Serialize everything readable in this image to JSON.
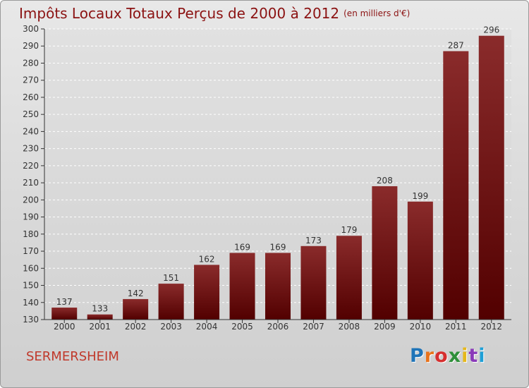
{
  "title": {
    "main": "Impôts Locaux Totaux Perçus de 2000 à 2012",
    "unit": "(en milliers d'€)"
  },
  "town": "SERMERSHEIM",
  "logo": {
    "text": "Proxiti",
    "letter_colors": [
      "#1f74b8",
      "#e8731c",
      "#d62f2f",
      "#2f8f3a",
      "#e6b81c",
      "#8a3ab9",
      "#1f9fd6"
    ]
  },
  "colors": {
    "bar_top": "#8a2b2b",
    "bar_bottom": "#520000",
    "title": "#8b1212",
    "town": "#c0392b"
  },
  "chart_data": {
    "type": "bar",
    "categories": [
      "2000",
      "2001",
      "2002",
      "2003",
      "2004",
      "2005",
      "2006",
      "2007",
      "2008",
      "2009",
      "2010",
      "2011",
      "2012"
    ],
    "values": [
      137,
      133,
      142,
      151,
      162,
      169,
      169,
      173,
      179,
      208,
      199,
      287,
      296
    ],
    "ylim": [
      130,
      300
    ],
    "yticks": [
      130,
      140,
      150,
      160,
      170,
      180,
      190,
      200,
      210,
      220,
      230,
      240,
      250,
      260,
      270,
      280,
      290,
      300
    ],
    "grid": true,
    "xlabel": "",
    "ylabel": ""
  }
}
